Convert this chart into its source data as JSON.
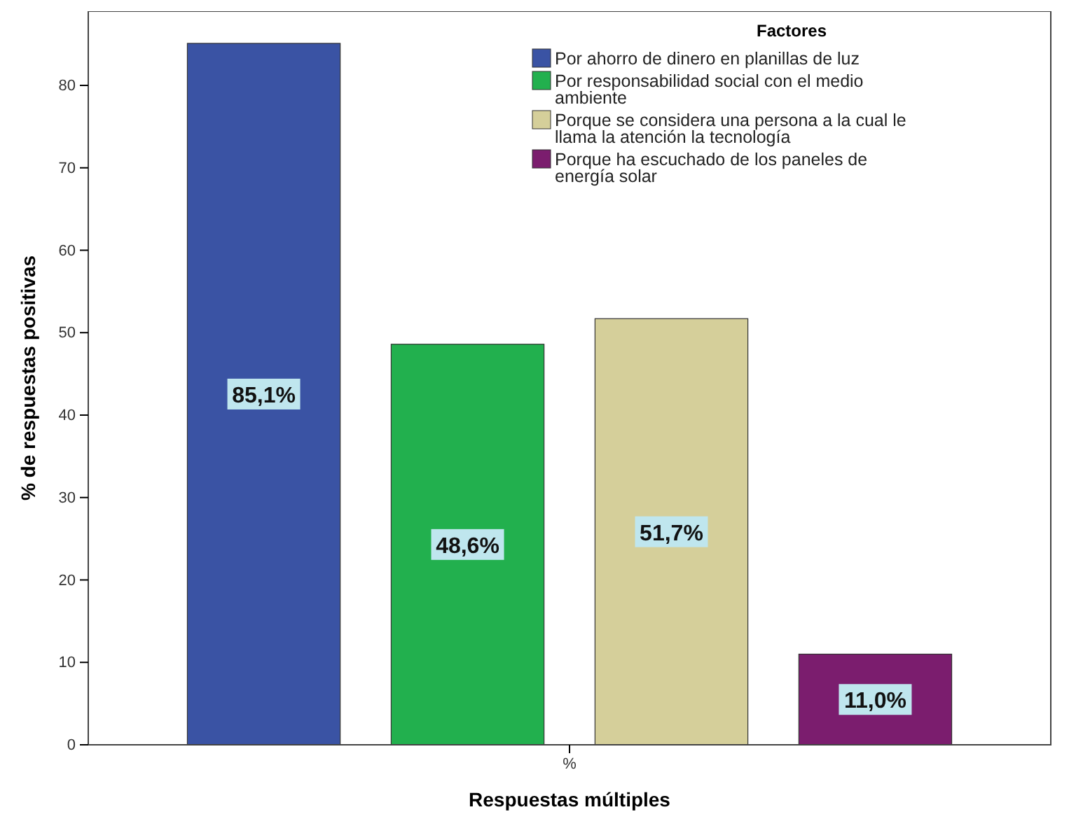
{
  "chart_data": {
    "type": "bar",
    "xlabel": "Respuestas múltiples",
    "ylabel": "% de respuestas positivas",
    "legend_title": "Factores",
    "categories": [
      "%"
    ],
    "series": [
      {
        "name": "Por ahorro de dinero en planillas de luz",
        "color": "#3a53a4",
        "values": [
          85.1
        ],
        "value_labels": [
          "85,1%"
        ]
      },
      {
        "name": "Por responsabilidad social con el medio ambiente",
        "color": "#22b04e",
        "values": [
          48.6
        ],
        "value_labels": [
          "48,6%"
        ]
      },
      {
        "name": "Porque se considera una persona a la cual le llama la atención la tecnología",
        "color": "#d5cf9a",
        "values": [
          51.7
        ],
        "value_labels": [
          "51,7%"
        ]
      },
      {
        "name": "Porque ha escuchado de los paneles de energía solar",
        "color": "#7b1d6e",
        "values": [
          11.0
        ],
        "value_labels": [
          "11,0%"
        ]
      }
    ],
    "ylim": [
      0,
      89
    ],
    "yticks": [
      0,
      10,
      20,
      30,
      40,
      50,
      60,
      70,
      80
    ],
    "grid": false,
    "legend": "top right"
  }
}
